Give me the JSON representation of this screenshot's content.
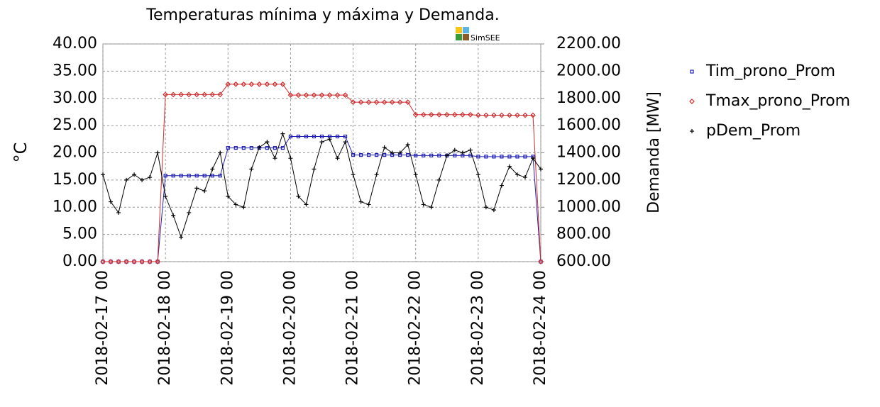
{
  "chart_data": {
    "type": "line",
    "title": "Temperaturas mínima y máxima y Demanda.",
    "watermark": "SimSEE",
    "y_label": "°C",
    "y2_label": "Demanda [MW]",
    "grid": true,
    "legend": "right",
    "x": [
      "2018-02-17 00",
      "2018-02-17 03",
      "2018-02-17 06",
      "2018-02-17 09",
      "2018-02-17 12",
      "2018-02-17 15",
      "2018-02-17 18",
      "2018-02-17 21",
      "2018-02-18 00",
      "2018-02-18 03",
      "2018-02-18 06",
      "2018-02-18 09",
      "2018-02-18 12",
      "2018-02-18 15",
      "2018-02-18 18",
      "2018-02-18 21",
      "2018-02-19 00",
      "2018-02-19 03",
      "2018-02-19 06",
      "2018-02-19 09",
      "2018-02-19 12",
      "2018-02-19 15",
      "2018-02-19 18",
      "2018-02-19 21",
      "2018-02-20 00",
      "2018-02-20 03",
      "2018-02-20 06",
      "2018-02-20 09",
      "2018-02-20 12",
      "2018-02-20 15",
      "2018-02-20 18",
      "2018-02-20 21",
      "2018-02-21 00",
      "2018-02-21 03",
      "2018-02-21 06",
      "2018-02-21 09",
      "2018-02-21 12",
      "2018-02-21 15",
      "2018-02-21 18",
      "2018-02-21 21",
      "2018-02-22 00",
      "2018-02-22 03",
      "2018-02-22 06",
      "2018-02-22 09",
      "2018-02-22 12",
      "2018-02-22 15",
      "2018-02-22 18",
      "2018-02-22 21",
      "2018-02-23 00",
      "2018-02-23 03",
      "2018-02-23 06",
      "2018-02-23 09",
      "2018-02-23 12",
      "2018-02-23 15",
      "2018-02-23 18",
      "2018-02-23 21",
      "2018-02-24 00"
    ],
    "xticks": [
      "2018-02-17 00",
      "2018-02-18 00",
      "2018-02-19 00",
      "2018-02-20 00",
      "2018-02-21 00",
      "2018-02-22 00",
      "2018-02-23 00",
      "2018-02-24 00"
    ],
    "ylim": [
      0,
      40
    ],
    "yticks": [
      {
        "value": 0,
        "label": "0.00"
      },
      {
        "value": 5,
        "label": "5.00"
      },
      {
        "value": 10,
        "label": "10.00"
      },
      {
        "value": 15,
        "label": "15.00"
      },
      {
        "value": 20,
        "label": "20.00"
      },
      {
        "value": 25,
        "label": "25.00"
      },
      {
        "value": 30,
        "label": "30.00"
      },
      {
        "value": 35,
        "label": "35.00"
      },
      {
        "value": 40,
        "label": "40.00"
      }
    ],
    "y2lim": [
      600,
      2200
    ],
    "y2ticks": [
      {
        "value": 600,
        "label": "600.00"
      },
      {
        "value": 800,
        "label": "800.00"
      },
      {
        "value": 1000,
        "label": "1000.00"
      },
      {
        "value": 1200,
        "label": "1200.00"
      },
      {
        "value": 1400,
        "label": "1400.00"
      },
      {
        "value": 1600,
        "label": "1600.00"
      },
      {
        "value": 1800,
        "label": "1800.00"
      },
      {
        "value": 2000,
        "label": "2000.00"
      },
      {
        "value": 2200,
        "label": "2200.00"
      }
    ],
    "series": [
      {
        "name": "Tim_prono_Prom",
        "color": "#1f1fb4",
        "marker": "square",
        "values": [
          0,
          0,
          0,
          0,
          0,
          0,
          0,
          0,
          15.8,
          15.8,
          15.8,
          15.8,
          15.8,
          15.8,
          15.8,
          15.8,
          20.9,
          20.9,
          20.9,
          20.9,
          20.9,
          20.9,
          20.9,
          20.9,
          23,
          23,
          23,
          23,
          23,
          23,
          23,
          23,
          19.6,
          19.6,
          19.6,
          19.6,
          19.6,
          19.6,
          19.6,
          19.6,
          19.5,
          19.5,
          19.5,
          19.5,
          19.5,
          19.5,
          19.5,
          19.5,
          19.3,
          19.3,
          19.3,
          19.3,
          19.3,
          19.3,
          19.3,
          19.3,
          0
        ]
      },
      {
        "name": "Tmax_prono_Prom",
        "color": "#d02a2a",
        "marker": "diamond",
        "values": [
          0,
          0,
          0,
          0,
          0,
          0,
          0,
          0,
          30.7,
          30.7,
          30.7,
          30.7,
          30.7,
          30.7,
          30.7,
          30.7,
          32.6,
          32.6,
          32.6,
          32.6,
          32.6,
          32.6,
          32.6,
          32.6,
          30.6,
          30.6,
          30.6,
          30.6,
          30.6,
          30.6,
          30.6,
          30.6,
          29.3,
          29.3,
          29.3,
          29.3,
          29.3,
          29.3,
          29.3,
          29.3,
          27,
          27,
          27,
          27,
          27,
          27,
          27,
          27,
          26.9,
          26.9,
          26.9,
          26.9,
          26.9,
          26.9,
          26.9,
          26.9,
          0
        ]
      },
      {
        "name": "pDem_Prom",
        "color": "#000000",
        "marker": "plus",
        "axis": "y2",
        "values": [
          1240,
          1040,
          960,
          1200,
          1240,
          1200,
          1220,
          1400,
          1080,
          940,
          780,
          960,
          1140,
          1120,
          1280,
          1400,
          1080,
          1020,
          1000,
          1280,
          1440,
          1480,
          1360,
          1540,
          1360,
          1080,
          1020,
          1280,
          1480,
          1500,
          1360,
          1480,
          1240,
          1040,
          1020,
          1240,
          1440,
          1400,
          1400,
          1460,
          1240,
          1020,
          1000,
          1200,
          1380,
          1420,
          1400,
          1420,
          1240,
          1000,
          980,
          1160,
          1300,
          1240,
          1220,
          1360,
          1280
        ]
      }
    ]
  }
}
